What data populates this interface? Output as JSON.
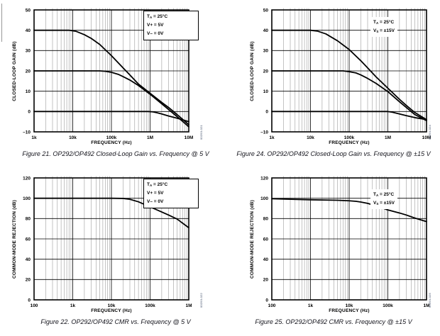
{
  "page": {
    "background": "#ffffff",
    "line_color": "#000000",
    "minor_grid_color": "#555555"
  },
  "chart_data": [
    {
      "id": "figure-21",
      "type": "line",
      "x_scale": "log",
      "x_log_min": 3,
      "x_log_max": 7,
      "ylim": [
        -10,
        50
      ],
      "grid": "on",
      "xlabel": "FREQUENCY (Hz)",
      "ylabel": "CLOSED-LOOP GAIN (dB)",
      "caption": "Figure 21. OP292/OP492 Closed-Loop Gain vs. Frequency @ 5 V",
      "figure_code": "00293-021",
      "x_ticks": [
        {
          "v": 1000,
          "label": "1k"
        },
        {
          "v": 10000,
          "label": "10k"
        },
        {
          "v": 100000,
          "label": "100k"
        },
        {
          "v": 1000000,
          "label": "1M"
        },
        {
          "v": 10000000,
          "label": "10M"
        }
      ],
      "y_ticks": [
        {
          "v": 50,
          "label": "50"
        },
        {
          "v": 40,
          "label": "40"
        },
        {
          "v": 30,
          "label": "30"
        },
        {
          "v": 20,
          "label": "20"
        },
        {
          "v": 10,
          "label": "10"
        },
        {
          "v": 0,
          "label": "0"
        },
        {
          "v": -10,
          "label": "–10"
        }
      ],
      "annotation": {
        "boxed": true,
        "lines": [
          {
            "pre": "T",
            "sub": "A",
            "post": " = 25°C"
          },
          {
            "pre": "V+ = 5V",
            "sub": "",
            "post": ""
          },
          {
            "pre": "V– = 0V",
            "sub": "",
            "post": ""
          }
        ]
      },
      "series": [
        {
          "name": "gain-40dB",
          "points": [
            [
              1000,
              40
            ],
            [
              8000,
              40
            ],
            [
              12000,
              39.5
            ],
            [
              20000,
              37.8
            ],
            [
              30000,
              36
            ],
            [
              50000,
              33
            ],
            [
              100000,
              27.5
            ],
            [
              200000,
              21.5
            ],
            [
              300000,
              18
            ],
            [
              500000,
              13.5
            ],
            [
              1000000,
              9
            ],
            [
              2000000,
              4.5
            ],
            [
              3000000,
              2
            ],
            [
              5000000,
              -1.5
            ],
            [
              10000000,
              -6.5
            ]
          ]
        },
        {
          "name": "gain-20dB",
          "points": [
            [
              1000,
              20
            ],
            [
              50000,
              20
            ],
            [
              70000,
              19.8
            ],
            [
              100000,
              19.3
            ],
            [
              150000,
              18.3
            ],
            [
              200000,
              17.2
            ],
            [
              300000,
              15.5
            ],
            [
              500000,
              12.8
            ],
            [
              1000000,
              8.5
            ],
            [
              2000000,
              3.8
            ],
            [
              5000000,
              -2.5
            ],
            [
              10000000,
              -7.5
            ]
          ]
        },
        {
          "name": "gain-0dB",
          "points": [
            [
              1000,
              0
            ],
            [
              900000,
              0
            ],
            [
              1200000,
              -0.2
            ],
            [
              1500000,
              -0.6
            ],
            [
              2000000,
              -1.2
            ],
            [
              3000000,
              -2.2
            ],
            [
              5000000,
              -3.3
            ],
            [
              10000000,
              -5
            ]
          ]
        }
      ]
    },
    {
      "id": "figure-24",
      "type": "line",
      "x_scale": "log",
      "x_log_min": 3,
      "x_log_max": 7,
      "ylim": [
        -10,
        50
      ],
      "grid": "on",
      "xlabel": "FREQUENCY (Hz)",
      "ylabel": "CLOSED-LOOP GAIN (dB)",
      "caption": "Figure 24. OP292/OP492 Closed-Loop Gain vs. Frequency @ ±15 V",
      "figure_code": "00293-024",
      "x_ticks": [
        {
          "v": 1000,
          "label": "1k"
        },
        {
          "v": 10000,
          "label": "10k"
        },
        {
          "v": 100000,
          "label": "100k"
        },
        {
          "v": 1000000,
          "label": "1M"
        },
        {
          "v": 10000000,
          "label": "10M"
        }
      ],
      "y_ticks": [
        {
          "v": 50,
          "label": "50"
        },
        {
          "v": 40,
          "label": "40"
        },
        {
          "v": 30,
          "label": "30"
        },
        {
          "v": 20,
          "label": "20"
        },
        {
          "v": 10,
          "label": "10"
        },
        {
          "v": 0,
          "label": "0"
        },
        {
          "v": -10,
          "label": "–10"
        }
      ],
      "annotation": {
        "boxed": false,
        "lines": [
          {
            "pre": "T",
            "sub": "A",
            "post": " = 25°C"
          },
          {
            "pre": "V",
            "sub": "S",
            "post": " = ±15V"
          }
        ]
      },
      "series": [
        {
          "name": "gain-40dB",
          "points": [
            [
              1000,
              40
            ],
            [
              10000,
              40
            ],
            [
              15000,
              39.6
            ],
            [
              25000,
              38.2
            ],
            [
              50000,
              34.8
            ],
            [
              100000,
              30.5
            ],
            [
              200000,
              25
            ],
            [
              300000,
              21.5
            ],
            [
              500000,
              17
            ],
            [
              1000000,
              11.5
            ],
            [
              2000000,
              6
            ],
            [
              3000000,
              3
            ],
            [
              5000000,
              -0.5
            ],
            [
              10000000,
              -4
            ]
          ]
        },
        {
          "name": "gain-20dB",
          "points": [
            [
              1000,
              20
            ],
            [
              70000,
              20
            ],
            [
              100000,
              19.6
            ],
            [
              150000,
              19
            ],
            [
              200000,
              18
            ],
            [
              300000,
              16.3
            ],
            [
              500000,
              13.8
            ],
            [
              1000000,
              9.8
            ],
            [
              2000000,
              4.8
            ],
            [
              5000000,
              -1.5
            ],
            [
              10000000,
              -4.5
            ]
          ]
        },
        {
          "name": "gain-0dB",
          "points": [
            [
              1000,
              0
            ],
            [
              1000000,
              0
            ],
            [
              1300000,
              -0.3
            ],
            [
              2000000,
              -1.2
            ],
            [
              3000000,
              -2
            ],
            [
              5000000,
              -3
            ],
            [
              10000000,
              -4
            ]
          ]
        }
      ]
    },
    {
      "id": "figure-22",
      "type": "line",
      "x_scale": "log",
      "x_log_min": 2,
      "x_log_max": 6,
      "ylim": [
        0,
        120
      ],
      "grid": "on",
      "xlabel": "FREQUENCY (Hz)",
      "ylabel": "COMMON-MODE REJECTION (dB)",
      "caption": "Figure 22. OP292/OP492 CMR vs. Frequency @ 5 V",
      "figure_code": "00293-022",
      "x_ticks": [
        {
          "v": 100,
          "label": "100"
        },
        {
          "v": 1000,
          "label": "1k"
        },
        {
          "v": 10000,
          "label": "10k"
        },
        {
          "v": 100000,
          "label": "100k"
        },
        {
          "v": 1000000,
          "label": "1M"
        }
      ],
      "y_ticks": [
        {
          "v": 120,
          "label": "120"
        },
        {
          "v": 100,
          "label": "100"
        },
        {
          "v": 80,
          "label": "80"
        },
        {
          "v": 60,
          "label": "60"
        },
        {
          "v": 40,
          "label": "40"
        },
        {
          "v": 20,
          "label": "20"
        },
        {
          "v": 0,
          "label": "0"
        }
      ],
      "annotation": {
        "boxed": true,
        "lines": [
          {
            "pre": "T",
            "sub": "A",
            "post": " = 25°C"
          },
          {
            "pre": "V+ = 5V",
            "sub": "",
            "post": ""
          },
          {
            "pre": "V– = 0V",
            "sub": "",
            "post": ""
          }
        ]
      },
      "series": [
        {
          "name": "cmr",
          "points": [
            [
              100,
              100
            ],
            [
              10000,
              100
            ],
            [
              20000,
              99.8
            ],
            [
              30000,
              99
            ],
            [
              50000,
              96.5
            ],
            [
              100000,
              91.5
            ],
            [
              200000,
              86.5
            ],
            [
              300000,
              83.5
            ],
            [
              500000,
              79.5
            ],
            [
              1000000,
              71
            ]
          ]
        }
      ]
    },
    {
      "id": "figure-25",
      "type": "line",
      "x_scale": "log",
      "x_log_min": 2,
      "x_log_max": 6,
      "ylim": [
        0,
        120
      ],
      "grid": "on",
      "xlabel": "FREQUENCY (Hz)",
      "ylabel": "COMMON-MODE REJECTION (dB)",
      "caption": "Figure 25. OP292/OP492 CMR vs. Frequency @ ±15 V",
      "figure_code": "00293-025",
      "x_ticks": [
        {
          "v": 100,
          "label": "100"
        },
        {
          "v": 1000,
          "label": "1k"
        },
        {
          "v": 10000,
          "label": "10k"
        },
        {
          "v": 100000,
          "label": "100k"
        },
        {
          "v": 1000000,
          "label": "1M"
        }
      ],
      "y_ticks": [
        {
          "v": 120,
          "label": "120"
        },
        {
          "v": 100,
          "label": "100"
        },
        {
          "v": 80,
          "label": "80"
        },
        {
          "v": 60,
          "label": "60"
        },
        {
          "v": 40,
          "label": "40"
        },
        {
          "v": 20,
          "label": "20"
        },
        {
          "v": 0,
          "label": "0"
        }
      ],
      "annotation": {
        "boxed": false,
        "lines": [
          {
            "pre": "T",
            "sub": "A",
            "post": " = 25°C"
          },
          {
            "pre": "V",
            "sub": "S",
            "post": " = ±15V"
          }
        ]
      },
      "series": [
        {
          "name": "cmr",
          "points": [
            [
              100,
              99.5
            ],
            [
              1000,
              98.5
            ],
            [
              5000,
              98
            ],
            [
              10000,
              97.5
            ],
            [
              15000,
              97
            ],
            [
              20000,
              96.3
            ],
            [
              30000,
              95
            ],
            [
              50000,
              92.5
            ],
            [
              100000,
              88.5
            ],
            [
              200000,
              85.5
            ],
            [
              300000,
              83.5
            ],
            [
              500000,
              80.5
            ],
            [
              1000000,
              77
            ]
          ]
        }
      ]
    }
  ]
}
